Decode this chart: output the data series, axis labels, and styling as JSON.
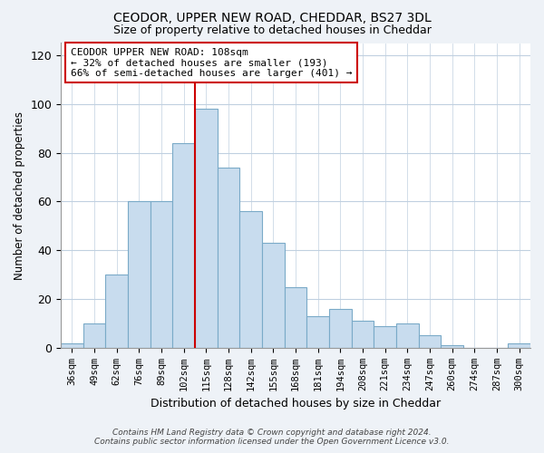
{
  "title": "CEODOR, UPPER NEW ROAD, CHEDDAR, BS27 3DL",
  "subtitle": "Size of property relative to detached houses in Cheddar",
  "xlabel": "Distribution of detached houses by size in Cheddar",
  "ylabel": "Number of detached properties",
  "bar_labels": [
    "36sqm",
    "49sqm",
    "62sqm",
    "76sqm",
    "89sqm",
    "102sqm",
    "115sqm",
    "128sqm",
    "142sqm",
    "155sqm",
    "168sqm",
    "181sqm",
    "194sqm",
    "208sqm",
    "221sqm",
    "234sqm",
    "247sqm",
    "260sqm",
    "274sqm",
    "287sqm",
    "300sqm"
  ],
  "bar_values": [
    2,
    10,
    30,
    60,
    60,
    84,
    98,
    74,
    56,
    43,
    25,
    13,
    16,
    11,
    9,
    10,
    5,
    1,
    0,
    0,
    2
  ],
  "bar_color": "#c8dcee",
  "bar_edge_color": "#7aaac8",
  "vline_color": "#cc0000",
  "annotation_text": "CEODOR UPPER NEW ROAD: 108sqm\n← 32% of detached houses are smaller (193)\n66% of semi-detached houses are larger (401) →",
  "annotation_box_color": "#ffffff",
  "annotation_box_edge": "#cc0000",
  "ylim": [
    0,
    125
  ],
  "yticks": [
    0,
    20,
    40,
    60,
    80,
    100,
    120
  ],
  "footer_line1": "Contains HM Land Registry data © Crown copyright and database right 2024.",
  "footer_line2": "Contains public sector information licensed under the Open Government Licence v3.0.",
  "bg_color": "#eef2f7",
  "plot_bg_color": "#ffffff",
  "grid_color": "#c0d0e0"
}
